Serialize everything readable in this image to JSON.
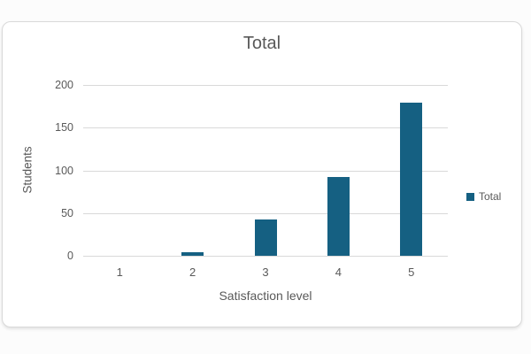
{
  "chart": {
    "colors": {
      "bar": "#156082",
      "text": "#595959",
      "gridline": "#d9d9d9",
      "border": "#d9d9d9",
      "background": "#ffffff"
    }
  },
  "chart_data": {
    "type": "bar",
    "title": "Total",
    "categories": [
      "1",
      "2",
      "3",
      "4",
      "5"
    ],
    "series": [
      {
        "name": "Total",
        "values": [
          0,
          4,
          42,
          92,
          179
        ]
      }
    ],
    "xlabel": "Satisfaction level",
    "ylabel": "Students",
    "ylim": [
      0,
      200
    ],
    "yticks": [
      0,
      50,
      100,
      150,
      200
    ],
    "grid": true,
    "legend_position": "right"
  }
}
